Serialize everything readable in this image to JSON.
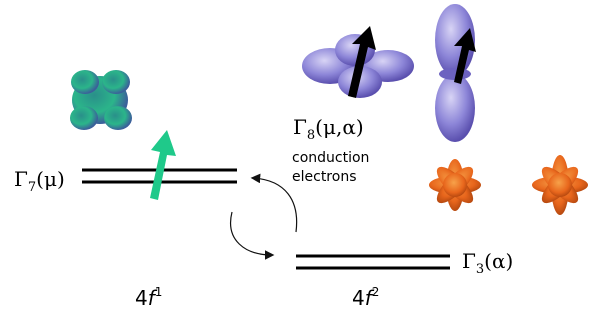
{
  "levels": [
    {
      "symbol": "Γ",
      "sub": "7",
      "arg": "(μ)"
    },
    {
      "symbol": "Γ",
      "sub": "8",
      "arg": "(μ,α)"
    },
    {
      "symbol": "Γ",
      "sub": "3",
      "arg": "(α)"
    }
  ],
  "conduction": [
    "conduction",
    "electrons"
  ],
  "configs": [
    {
      "base": "4",
      "orbital": "f",
      "sup": "1"
    },
    {
      "base": "4",
      "orbital": "f",
      "sup": "2"
    }
  ]
}
